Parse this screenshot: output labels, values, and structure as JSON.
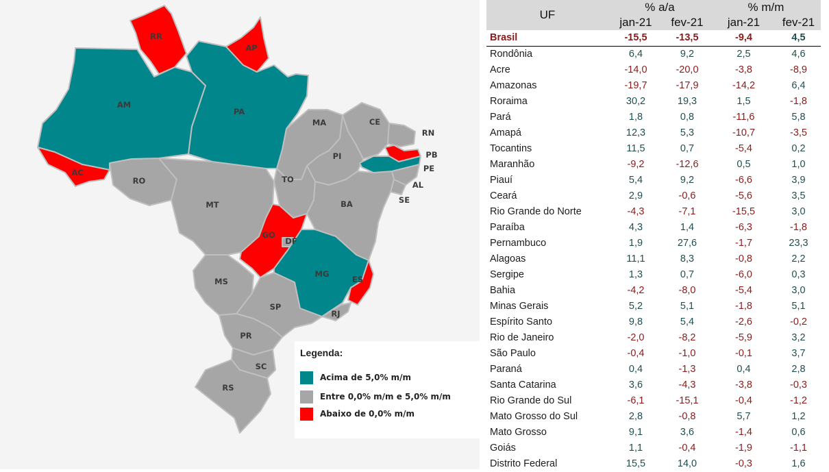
{
  "colors": {
    "above": "#00868b",
    "between": "#a6a6a6",
    "below": "#ff0000",
    "positive_text": "#1f4e4e",
    "negative_text": "#8b1a1a"
  },
  "map": {
    "labels": {
      "RR": "RR",
      "AP": "AP",
      "AM": "AM",
      "PA": "PA",
      "AC": "AC",
      "RO": "RO",
      "MT": "MT",
      "MA": "MA",
      "CE": "CE",
      "RN": "RN",
      "PB": "PB",
      "PE": "PE",
      "AL": "AL",
      "SE": "SE",
      "PI": "PI",
      "TO": "TO",
      "BA": "BA",
      "GO": "GO",
      "DF": "DF",
      "MG": "MG",
      "ES": "ES",
      "MS": "MS",
      "SP": "SP",
      "RJ": "RJ",
      "PR": "PR",
      "SC": "SC",
      "RS": "RS"
    },
    "legend": {
      "title": "Legenda:",
      "above": "Acima de 5,0% m/m",
      "between": "Entre 0,0% m/m e 5,0% m/m",
      "below": "Abaixo de 0,0% m/m"
    }
  },
  "table": {
    "header": {
      "uf": "UF",
      "aa": "% a/a",
      "mm": "% m/m",
      "jan": "jan-21",
      "fev": "fev-21"
    },
    "rows": [
      {
        "name": "Brasil",
        "v": [
          "-15,5",
          "-13,5",
          "-9,4",
          "4,5"
        ]
      },
      {
        "name": "Rondônia",
        "v": [
          "6,4",
          "9,2",
          "2,5",
          "4,6"
        ]
      },
      {
        "name": "Acre",
        "v": [
          "-14,0",
          "-20,0",
          "-3,8",
          "-8,9"
        ]
      },
      {
        "name": "Amazonas",
        "v": [
          "-19,7",
          "-17,9",
          "-14,2",
          "6,4"
        ]
      },
      {
        "name": "Roraima",
        "v": [
          "30,2",
          "19,3",
          "1,5",
          "-1,8"
        ]
      },
      {
        "name": "Pará",
        "v": [
          "1,8",
          "0,8",
          "-11,6",
          "5,8"
        ]
      },
      {
        "name": "Amapá",
        "v": [
          "12,3",
          "5,3",
          "-10,7",
          "-3,5"
        ]
      },
      {
        "name": "Tocantins",
        "v": [
          "11,5",
          "0,7",
          "-5,4",
          "0,2"
        ]
      },
      {
        "name": "Maranhão",
        "v": [
          "-9,2",
          "-12,6",
          "0,5",
          "1,0"
        ]
      },
      {
        "name": "Piauí",
        "v": [
          "5,4",
          "9,2",
          "-6,6",
          "3,9"
        ]
      },
      {
        "name": "Ceará",
        "v": [
          "2,9",
          "-0,6",
          "-5,6",
          "3,5"
        ]
      },
      {
        "name": "Rio Grande do Norte",
        "v": [
          "-4,3",
          "-7,1",
          "-15,5",
          "3,0"
        ]
      },
      {
        "name": "Paraíba",
        "v": [
          "4,3",
          "1,4",
          "-6,3",
          "-1,8"
        ]
      },
      {
        "name": "Pernambuco",
        "v": [
          "1,9",
          "27,6",
          "-1,7",
          "23,3"
        ]
      },
      {
        "name": "Alagoas",
        "v": [
          "11,1",
          "8,3",
          "-0,8",
          "2,2"
        ]
      },
      {
        "name": "Sergipe",
        "v": [
          "1,3",
          "0,7",
          "-6,0",
          "0,3"
        ]
      },
      {
        "name": "Bahia",
        "v": [
          "-4,2",
          "-8,0",
          "-5,4",
          "3,0"
        ]
      },
      {
        "name": "Minas Gerais",
        "v": [
          "5,2",
          "5,1",
          "-1,8",
          "5,1"
        ]
      },
      {
        "name": "Espírito Santo",
        "v": [
          "9,8",
          "5,4",
          "-2,6",
          "-0,2"
        ]
      },
      {
        "name": "Rio de Janeiro",
        "v": [
          "-2,0",
          "-8,2",
          "-5,9",
          "3,2"
        ]
      },
      {
        "name": "São Paulo",
        "v": [
          "-0,4",
          "-1,0",
          "-0,1",
          "3,7"
        ]
      },
      {
        "name": "Paraná",
        "v": [
          "0,4",
          "-1,3",
          "0,4",
          "2,8"
        ]
      },
      {
        "name": "Santa Catarina",
        "v": [
          "3,6",
          "-4,3",
          "-3,8",
          "-0,3"
        ]
      },
      {
        "name": "Rio Grande do Sul",
        "v": [
          "-6,1",
          "-15,1",
          "-0,4",
          "-1,2"
        ]
      },
      {
        "name": "Mato Grosso do Sul",
        "v": [
          "2,8",
          "-0,8",
          "5,7",
          "1,2"
        ]
      },
      {
        "name": "Mato Grosso",
        "v": [
          "9,1",
          "3,6",
          "-1,4",
          "0,6"
        ]
      },
      {
        "name": "Goiás",
        "v": [
          "1,1",
          "-0,4",
          "-1,9",
          "-1,1"
        ]
      },
      {
        "name": "Distrito Federal",
        "v": [
          "15,5",
          "14,0",
          "-0,3",
          "1,6"
        ]
      }
    ]
  }
}
